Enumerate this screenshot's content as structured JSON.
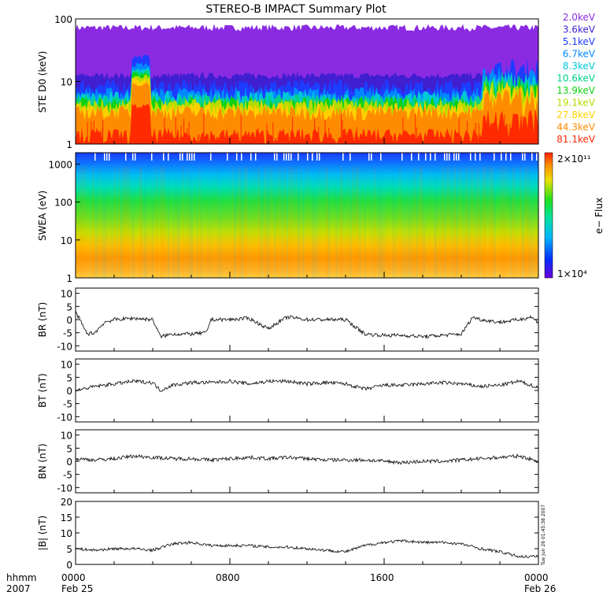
{
  "title": "STEREO-B IMPACT Summary Plot",
  "footer": {
    "left_top": "hhmm",
    "left_bottom": "2007",
    "time_ticks": [
      "0000",
      "0800",
      "1600",
      "0000"
    ],
    "date_left": "Feb 25",
    "date_right": "Feb 26",
    "stamp": "Tue Jun 26 01:45:38 2007"
  },
  "chart_data": [
    {
      "type": "line",
      "id": "ste",
      "ylabel": "STE D0 (keV)",
      "yscale": "log",
      "ylim": [
        1,
        100
      ],
      "yticks": [
        "1",
        "10",
        "100"
      ],
      "legend_placement": "right",
      "series": [
        {
          "name": "2.0keV",
          "color": "#8a2be2",
          "level": 70
        },
        {
          "name": "3.6keV",
          "color": "#3f1fd0",
          "level": 12
        },
        {
          "name": "5.1keV",
          "color": "#1e3cff",
          "level": 8
        },
        {
          "name": "6.7keV",
          "color": "#0088ff",
          "level": 6
        },
        {
          "name": "8.3keV",
          "color": "#00c8d8",
          "level": 5.2
        },
        {
          "name": "10.6keV",
          "color": "#00d28c",
          "level": 4.6
        },
        {
          "name": "13.9keV",
          "color": "#10d010",
          "level": 4.2
        },
        {
          "name": "19.1keV",
          "color": "#b4dc00",
          "level": 3.9
        },
        {
          "name": "27.8keV",
          "color": "#ffd000",
          "level": 3.4
        },
        {
          "name": "44.3keV",
          "color": "#ff8c00",
          "level": 3.0
        },
        {
          "name": "81.1keV",
          "color": "#ff2a00",
          "level": 1.3
        }
      ]
    },
    {
      "type": "heatmap",
      "id": "swea",
      "ylabel": "SWEA (eV)",
      "yscale": "log",
      "ylim": [
        1,
        2000
      ],
      "yticks": [
        "1",
        "10",
        "100",
        "1000"
      ],
      "colorbar": {
        "label": "e− Flux",
        "max": "2×10¹¹",
        "min": "1×10⁴"
      }
    },
    {
      "type": "line",
      "id": "br",
      "ylabel": "BR (nT)",
      "ylim": [
        -12,
        12
      ],
      "yticks": [
        "-10",
        "-5",
        "0",
        "5",
        "10"
      ],
      "x_hours": [
        0,
        0.6,
        1.0,
        1.5,
        2.0,
        3.0,
        4.0,
        4.4,
        5.0,
        6.0,
        6.8,
        7.0,
        7.6,
        8.0,
        9.0,
        10.0,
        10.5,
        11.0,
        12.0,
        13.0,
        14.0,
        15.0,
        16.0,
        17.0,
        18.0,
        19.0,
        20.0,
        20.6,
        21.0,
        22.0,
        23.0,
        23.6,
        24.0
      ],
      "values": [
        3,
        -5.5,
        -5,
        -1,
        0,
        0.5,
        0,
        -6.5,
        -5.5,
        -5.5,
        -5,
        0,
        0,
        0,
        0.5,
        -3.5,
        -1,
        1,
        0,
        0,
        0,
        -5.5,
        -6,
        -6,
        -6.5,
        -6,
        -5.5,
        1,
        0,
        -1,
        0,
        1,
        -1
      ]
    },
    {
      "type": "line",
      "id": "bt",
      "ylabel": "BT (nT)",
      "ylim": [
        -12,
        12
      ],
      "yticks": [
        "-10",
        "-5",
        "0",
        "5",
        "10"
      ],
      "x_hours": [
        0,
        1,
        2,
        3,
        4,
        4.4,
        5,
        6,
        7,
        8,
        9,
        10,
        11,
        12,
        13,
        14,
        15,
        16,
        17,
        18,
        19,
        20,
        21,
        22,
        23,
        24
      ],
      "values": [
        0,
        1.5,
        2.5,
        3.5,
        3,
        0,
        2,
        3,
        3,
        3.5,
        2.5,
        3.5,
        3.5,
        2.5,
        3,
        2.5,
        0.5,
        2,
        2,
        2.5,
        3,
        2.5,
        1.5,
        2,
        3.5,
        1
      ]
    },
    {
      "type": "line",
      "id": "bn",
      "ylabel": "BN (nT)",
      "ylim": [
        -12,
        12
      ],
      "yticks": [
        "-10",
        "-5",
        "0",
        "5",
        "10"
      ],
      "x_hours": [
        0,
        1,
        2,
        3,
        4,
        5,
        6,
        7,
        8,
        9,
        10,
        11,
        12,
        13,
        14,
        15,
        16,
        17,
        18,
        19,
        20,
        21,
        22,
        23,
        24
      ],
      "values": [
        1,
        0.5,
        1,
        2,
        1.5,
        1,
        1,
        0.5,
        1,
        1.5,
        1,
        1.5,
        1,
        0.5,
        0.5,
        0.5,
        0,
        -0.5,
        0,
        0,
        0.5,
        1,
        1.5,
        2,
        0
      ]
    },
    {
      "type": "line",
      "id": "bmag",
      "ylabel": "|B| (nT)",
      "ylim": [
        0,
        20
      ],
      "yticks": [
        "0",
        "5",
        "10",
        "15",
        "20"
      ],
      "x_hours": [
        0,
        1,
        2,
        3,
        4,
        5,
        6,
        7,
        8,
        9,
        10,
        11,
        12,
        13,
        14,
        15,
        16,
        17,
        18,
        19,
        20,
        21,
        22,
        23,
        24
      ],
      "values": [
        5,
        4.5,
        5,
        5,
        4.5,
        6.5,
        7,
        6,
        6,
        6,
        5.5,
        5.5,
        5,
        4.5,
        4,
        6,
        7,
        7.5,
        7,
        7,
        6.5,
        5,
        4,
        2.5,
        2.5
      ]
    }
  ]
}
